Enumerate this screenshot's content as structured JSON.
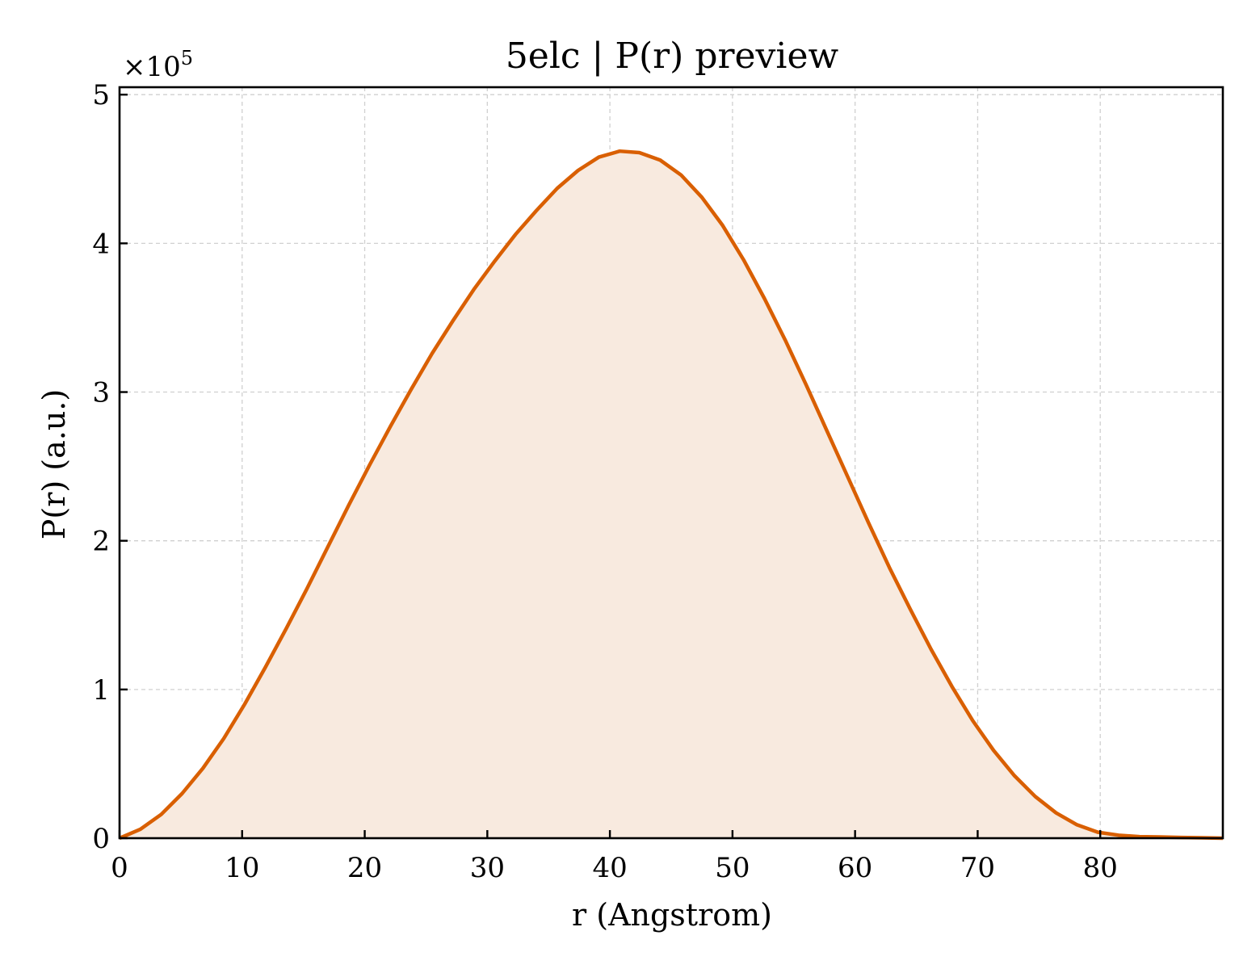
{
  "chart_data": {
    "type": "area",
    "title": "5elc | P(r) preview",
    "xlabel": "r (Angstrom)",
    "ylabel": "P(r) (a.u.)",
    "y_multiplier_label": "×10",
    "y_multiplier_exponent": "5",
    "xlim": [
      0,
      90
    ],
    "ylim": [
      0,
      5.05
    ],
    "xticks": [
      0,
      10,
      20,
      30,
      40,
      50,
      60,
      70,
      80
    ],
    "yticks": [
      0,
      1,
      2,
      3,
      4,
      5
    ],
    "grid": true,
    "line_color": "#d95f02",
    "fill_color": "#f8eadf",
    "series": [
      {
        "x": [
          0,
          1.7,
          3.4,
          5.1,
          6.8,
          8.5,
          10.2,
          11.9,
          13.6,
          15.3,
          17.0,
          18.7,
          20.4,
          22.1,
          23.8,
          25.5,
          27.2,
          28.9,
          30.6,
          32.3,
          34.0,
          35.7,
          37.4,
          39.1,
          40.8,
          42.4,
          44.1,
          45.8,
          47.5,
          49.2,
          50.9,
          52.6,
          54.3,
          56.0,
          57.7,
          59.4,
          61.1,
          62.8,
          64.5,
          66.2,
          67.9,
          69.6,
          71.3,
          73.0,
          74.7,
          76.4,
          78.1,
          79.8,
          81.5,
          83.2,
          84.9,
          86.6,
          88.3,
          90.0
        ],
        "y": [
          0.0,
          0.06,
          0.16,
          0.3,
          0.47,
          0.67,
          0.9,
          1.15,
          1.41,
          1.68,
          1.96,
          2.24,
          2.51,
          2.77,
          3.02,
          3.26,
          3.48,
          3.69,
          3.88,
          4.06,
          4.22,
          4.37,
          4.49,
          4.58,
          4.62,
          4.61,
          4.56,
          4.46,
          4.31,
          4.12,
          3.89,
          3.63,
          3.35,
          3.05,
          2.74,
          2.43,
          2.12,
          1.82,
          1.54,
          1.27,
          1.02,
          0.79,
          0.59,
          0.42,
          0.28,
          0.17,
          0.09,
          0.04,
          0.02,
          0.01,
          0.008,
          0.005,
          0.003,
          0.0
        ]
      }
    ]
  }
}
